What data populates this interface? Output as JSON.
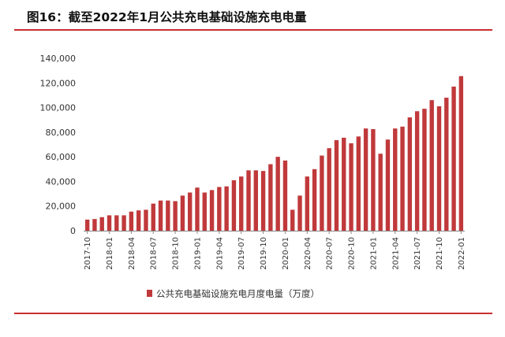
{
  "header": {
    "title": "图16：截至2022年1月公共充电基础设施充电电量"
  },
  "chart_data": {
    "type": "bar",
    "title": "图16：截至2022年1月公共充电基础设施充电电量",
    "xlabel": "",
    "ylabel": "",
    "ylim": [
      0,
      140000
    ],
    "y_ticks": [
      0,
      20000,
      40000,
      60000,
      80000,
      100000,
      120000,
      140000
    ],
    "y_tick_labels": [
      "0",
      "20,000",
      "40,000",
      "60,000",
      "80,000",
      "100,000",
      "120,000",
      "140,000"
    ],
    "x_tick_labels": [
      "2017-10",
      "2018-01",
      "2018-04",
      "2018-07",
      "2018-10",
      "2019-01",
      "2019-04",
      "2019-07",
      "2019-10",
      "2020-01",
      "2020-04",
      "2020-07",
      "2020-10",
      "2021-01",
      "2021-04",
      "2021-07",
      "2021-10",
      "2022-01"
    ],
    "grid": false,
    "legend_position": "bottom",
    "colors": {
      "bar": "#c0393b",
      "axis": "#888888"
    },
    "categories": [
      "2017-10",
      "2017-11",
      "2017-12",
      "2018-01",
      "2018-02",
      "2018-03",
      "2018-04",
      "2018-05",
      "2018-06",
      "2018-07",
      "2018-08",
      "2018-09",
      "2018-10",
      "2018-11",
      "2018-12",
      "2019-01",
      "2019-02",
      "2019-03",
      "2019-04",
      "2019-05",
      "2019-06",
      "2019-07",
      "2019-08",
      "2019-09",
      "2019-10",
      "2019-11",
      "2019-12",
      "2020-01",
      "2020-02",
      "2020-03",
      "2020-04",
      "2020-05",
      "2020-06",
      "2020-07",
      "2020-08",
      "2020-09",
      "2020-10",
      "2020-11",
      "2020-12",
      "2021-01",
      "2021-02",
      "2021-03",
      "2021-04",
      "2021-05",
      "2021-06",
      "2021-07",
      "2021-08",
      "2021-09",
      "2021-10",
      "2021-11",
      "2021-12",
      "2022-01"
    ],
    "series": [
      {
        "name": "公共充电基础设施充电月度电量（万度）",
        "values": [
          9000,
          9500,
          11000,
          12500,
          12500,
          12500,
          15500,
          16500,
          17000,
          22000,
          24500,
          24500,
          24000,
          28500,
          31000,
          35000,
          31000,
          33000,
          35500,
          36000,
          41000,
          44000,
          49000,
          49000,
          48500,
          54000,
          60000,
          57000,
          17000,
          28500,
          44000,
          50000,
          61000,
          67000,
          73500,
          75500,
          71000,
          76500,
          83000,
          82500,
          62500,
          74000,
          83000,
          84500,
          92000,
          97000,
          99000,
          106000,
          101000,
          108000,
          117000,
          125500
        ]
      }
    ]
  }
}
